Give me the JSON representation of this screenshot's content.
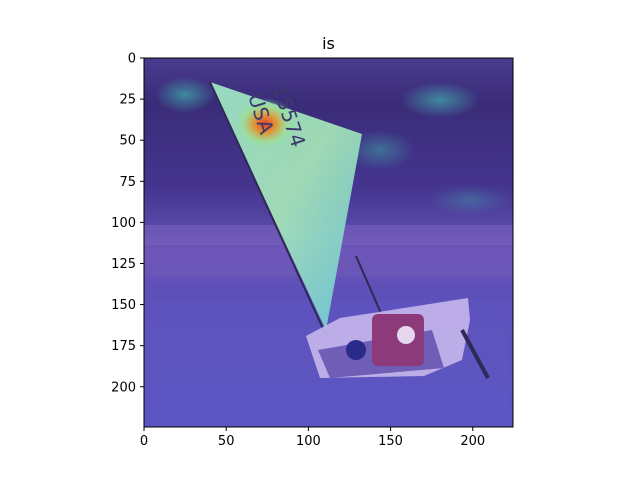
{
  "title": "is",
  "x_axis": {
    "range": [
      0,
      224
    ],
    "ticks": [
      0,
      50,
      100,
      150,
      200
    ]
  },
  "y_axis": {
    "range": [
      0,
      224
    ],
    "ticks": [
      0,
      25,
      50,
      75,
      100,
      125,
      150,
      175,
      200
    ],
    "inverted": true
  },
  "image": {
    "scene": "sailboat on sand beach with sail",
    "overlay": "attention heatmap (purple-blue-green-red)",
    "sail_text": [
      "USA",
      "15574"
    ],
    "colors": {
      "sky": "#3b2a6e",
      "sand": "#6a5fc0",
      "sail": "#9be0c0",
      "hot": "#e84a2a",
      "boat": "#c9b8e8"
    }
  }
}
